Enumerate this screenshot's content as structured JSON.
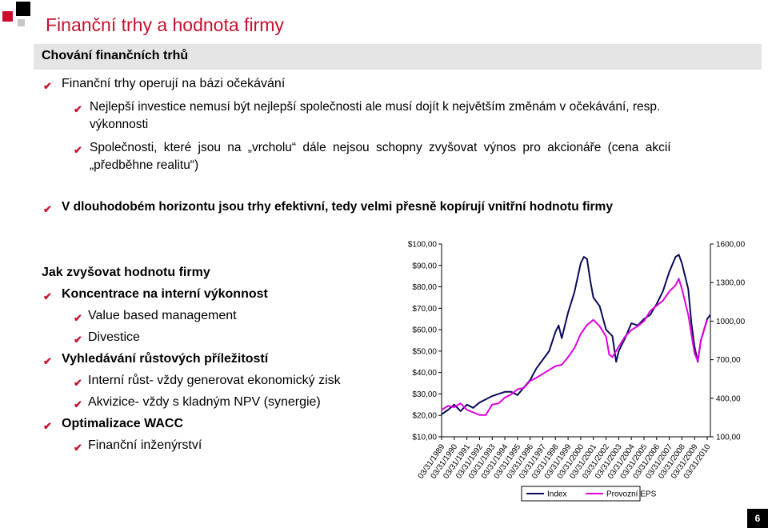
{
  "title": "Finanční trhy a hodnota firmy",
  "section": "Chování finančních trhů",
  "bullets_top": [
    "Finanční trhy operují na bázi očekávání",
    "Nejlepší investice nemusí být nejlepší společnosti ale musí dojít k největším změnám v očekávání, resp.",
    "výkonnosti",
    "Společnosti, které jsou na „vrcholu“ dále nejsou schopny zvyšovat výnos pro akcionáře (cena akcií",
    "„předběhne realitu“)",
    "V dlouhodobém horizontu jsou trhy efektivní, tedy velmi přesně kopírují vnitřní hodnotu firmy"
  ],
  "left_list": {
    "heading": "Jak zvyšovat hodnotu firmy",
    "items": [
      "Koncentrace na interní výkonnost",
      "Value based management",
      "Divestice",
      "Vyhledávání růstových příležitostí",
      "Interní růst- vždy generovat ekonomický zisk",
      "Akvizice- vždy s kladným NPV (synergie)",
      "Optimalizace WACC",
      "Finanční inženýrství"
    ]
  },
  "page_number": "6",
  "check_glyph": "✔",
  "colors": {
    "accent": "#c8102e",
    "index_line": "#0a0a5a",
    "eps_line": "#e000e0"
  },
  "chart_data": {
    "type": "line",
    "x": [
      "03/31/1989",
      "03/31/1990",
      "03/31/1991",
      "03/31/1992",
      "03/31/1993",
      "03/31/1994",
      "03/31/1995",
      "03/31/1996",
      "03/31/1997",
      "03/31/1998",
      "03/31/1999",
      "03/31/2000",
      "03/31/2001",
      "03/31/2002",
      "03/31/2003",
      "03/31/2004",
      "03/31/2005",
      "03/31/2006",
      "03/31/2007",
      "03/31/2008",
      "03/31/2009",
      "03/31/2010"
    ],
    "left_axis": {
      "ticks": [
        "$100,00",
        "$90,00",
        "$80,00",
        "$70,00",
        "$60,00",
        "$50,00",
        "$40,00",
        "$30,00",
        "$20,00",
        "$10,00"
      ],
      "range": [
        10,
        100
      ]
    },
    "right_axis": {
      "ticks": [
        "1600,00",
        "1300,00",
        "1000,00",
        "700,00",
        "400,00",
        "100,00"
      ],
      "range": [
        100,
        1600
      ]
    },
    "legend": [
      "Index",
      "Provozní EPS"
    ],
    "legend_position": "bottom",
    "grid": false,
    "series": [
      {
        "name": "Index",
        "axis": "left",
        "x": [
          1989,
          1989.5,
          1990,
          1990.5,
          1991,
          1991.5,
          1992,
          1992.5,
          1993,
          1993.5,
          1994,
          1994.5,
          1995,
          1995.5,
          1996,
          1996.5,
          1997,
          1997.5,
          1998,
          1998.25,
          1998.5,
          1999,
          1999.5,
          2000,
          2000.25,
          2000.5,
          2000.75,
          2001,
          2001.5,
          2002,
          2002.5,
          2002.8,
          2003,
          2003.5,
          2004,
          2004.5,
          2005,
          2005.5,
          2006,
          2006.5,
          2007,
          2007.5,
          2007.75,
          2008,
          2008.5,
          2008.75,
          2009,
          2009.25,
          2009.5,
          2010,
          2010.25
        ],
        "values": [
          20.5,
          22.5,
          25,
          22,
          25,
          23.5,
          26,
          27.5,
          29,
          30,
          31,
          31,
          29.5,
          33,
          36.5,
          42,
          46,
          50,
          59,
          62,
          56,
          68,
          77.5,
          91,
          94,
          93,
          83,
          75,
          71,
          60,
          57,
          45,
          50,
          56,
          63,
          62,
          65,
          67,
          72,
          78,
          87,
          94,
          95,
          91,
          79,
          63,
          52,
          45,
          55,
          65,
          67
        ]
      },
      {
        "name": "Provozní EPS",
        "axis": "right",
        "x": [
          1989,
          1989.5,
          1990,
          1990.5,
          1991,
          1991.5,
          1992,
          1992.5,
          1993,
          1993.5,
          1994,
          1994.5,
          1995,
          1995.5,
          1996,
          1996.5,
          1997,
          1997.5,
          1998,
          1998.5,
          1999,
          1999.5,
          2000,
          2000.5,
          2001,
          2001.5,
          2002,
          2002.25,
          2002.5,
          2003,
          2003.5,
          2004,
          2004.5,
          2005,
          2005.5,
          2006,
          2006.5,
          2007,
          2007.5,
          2007.75,
          2008,
          2008.5,
          2009,
          2009.25,
          2009.5,
          2010
        ],
        "values": [
          310,
          340,
          330,
          360,
          310,
          290,
          270,
          270,
          350,
          360,
          405,
          430,
          470,
          480,
          535,
          560,
          590,
          620,
          650,
          660,
          720,
          790,
          900,
          970,
          1010,
          960,
          880,
          740,
          720,
          800,
          880,
          930,
          960,
          1000,
          1080,
          1120,
          1160,
          1230,
          1280,
          1330,
          1250,
          1050,
          750,
          690,
          850,
          1010
        ]
      }
    ]
  }
}
